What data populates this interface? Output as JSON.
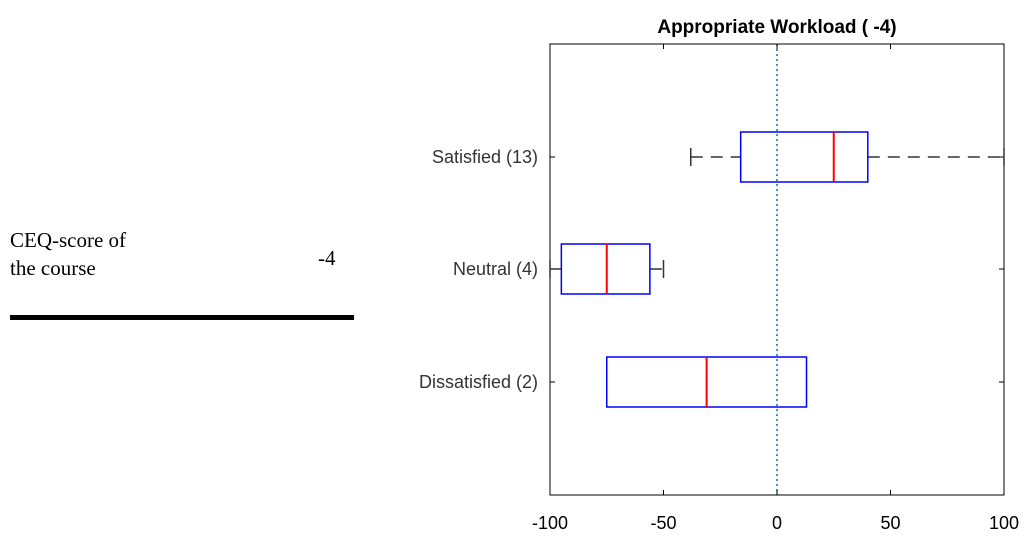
{
  "ceq": {
    "label_line1": "CEQ-score of",
    "label_line2": "the course",
    "value": "-4"
  },
  "chart_data": {
    "type": "boxplot",
    "orientation": "horizontal",
    "title": "Appropriate Workload ( -4)",
    "xlabel": "",
    "ylabel": "",
    "xlim": [
      -100,
      100
    ],
    "xticks": [
      -100,
      -50,
      0,
      50,
      100
    ],
    "xtick_labels": [
      "-100",
      "-50",
      "0",
      "50",
      "100"
    ],
    "reference_line": 0,
    "categories": [
      "Satisfied (13)",
      "Neutral (4)",
      "Dissatisfied (2)"
    ],
    "boxes": [
      {
        "category": "Satisfied (13)",
        "whisker_low": -38,
        "q1": -16,
        "median": 25,
        "q3": 40,
        "whisker_high": 100
      },
      {
        "category": "Neutral (4)",
        "whisker_low": -100,
        "q1": -95,
        "median": -75,
        "q3": -56,
        "whisker_high": -50
      },
      {
        "category": "Dissatisfied (2)",
        "whisker_low": -75,
        "q1": -75,
        "median": -31,
        "q3": 13,
        "whisker_high": 13
      }
    ],
    "grid": false,
    "colors": {
      "box": "#0000ff",
      "median": "#ff0000",
      "whisker": "#000000",
      "reference": "#0072bd",
      "axes": "#000000"
    }
  }
}
